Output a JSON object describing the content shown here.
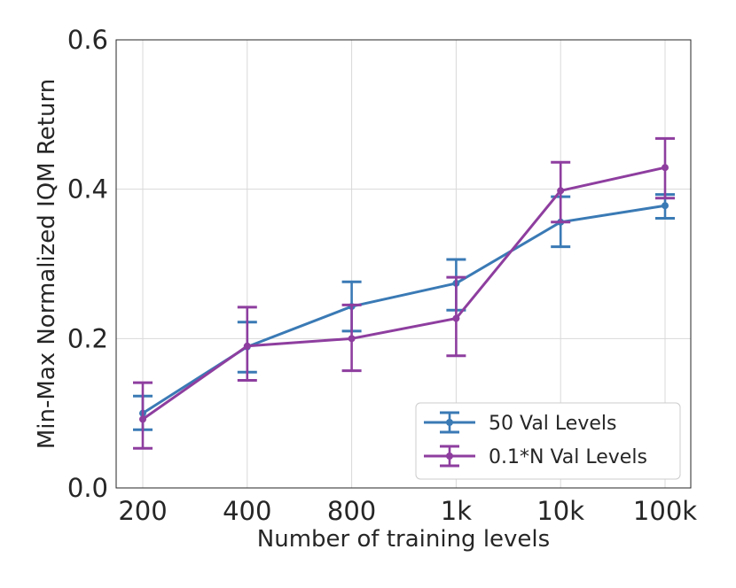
{
  "chart_data": {
    "type": "line",
    "title": "",
    "xlabel": "Number of training levels",
    "ylabel": "Min-Max Normalized IQM Return",
    "categories": [
      "200",
      "400",
      "800",
      "1k",
      "10k",
      "100k"
    ],
    "ylim": [
      0.0,
      0.6
    ],
    "yticks": [
      0.0,
      0.2,
      0.4,
      0.6
    ],
    "ytick_labels": [
      "0.0",
      "0.2",
      "0.4",
      "0.6"
    ],
    "grid": true,
    "legend_position": "lower-right",
    "series": [
      {
        "name": "50 Val Levels",
        "color": "#3a7ab5",
        "values": [
          0.1,
          0.189,
          0.243,
          0.274,
          0.356,
          0.378
        ],
        "err_low": [
          0.078,
          0.155,
          0.21,
          0.238,
          0.323,
          0.361
        ],
        "err_high": [
          0.123,
          0.222,
          0.276,
          0.306,
          0.39,
          0.393
        ]
      },
      {
        "name": "0.1*N Val Levels",
        "color": "#8e3e9f",
        "values": [
          0.092,
          0.19,
          0.2,
          0.227,
          0.398,
          0.429
        ],
        "err_low": [
          0.053,
          0.144,
          0.157,
          0.177,
          0.356,
          0.388
        ],
        "err_high": [
          0.141,
          0.242,
          0.245,
          0.282,
          0.436,
          0.468
        ]
      }
    ]
  }
}
